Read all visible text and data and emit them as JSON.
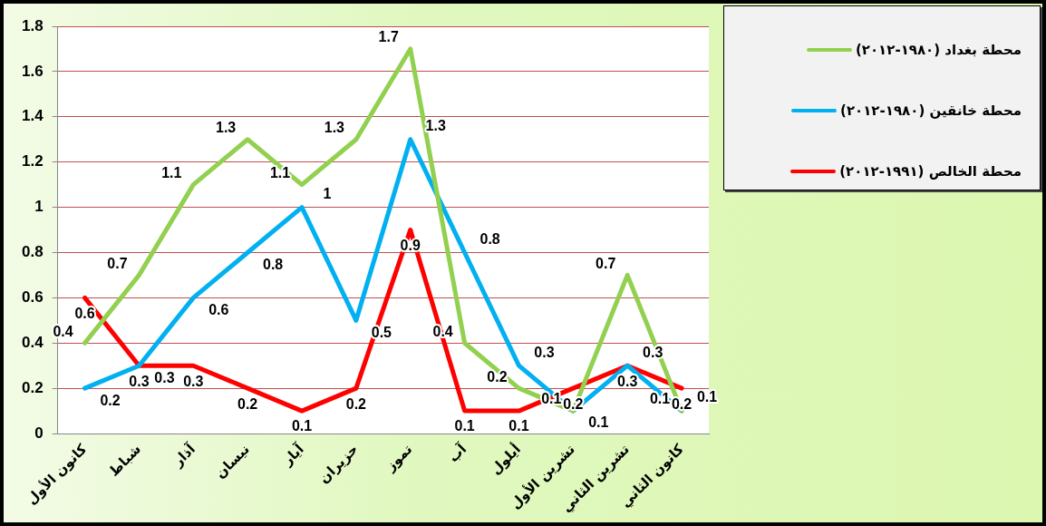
{
  "chart_data": {
    "type": "line",
    "categories": [
      "كانون الأول",
      "شباط",
      "آذار",
      "نيسان",
      "آيار",
      "حزيران",
      "تموز",
      "آب",
      "أيلول",
      "تشرين الأول",
      "تشرين الثاني",
      "كانون الثاني"
    ],
    "series": [
      {
        "name": "محطة بغداد (١٩٨٠-٢٠١٢)",
        "color": "#92d050",
        "values": [
          0.4,
          0.7,
          1.1,
          1.3,
          1.1,
          1.3,
          1.7,
          0.4,
          0.2,
          0.1,
          0.7,
          0.1
        ]
      },
      {
        "name": "محطة خانقين (١٩٨٠-٢٠١٢)",
        "color": "#00b0f0",
        "values": [
          0.2,
          0.3,
          0.6,
          0.8,
          1,
          0.5,
          1.3,
          0.8,
          0.3,
          0.1,
          0.3,
          0.1
        ]
      },
      {
        "name": "محطة الخالص (١٩٩١-٢٠١٢)",
        "color": "#ff0000",
        "values": [
          0.6,
          0.3,
          0.3,
          0.2,
          0.1,
          0.2,
          0.9,
          0.1,
          0.1,
          0.2,
          0.3,
          0.2
        ]
      }
    ],
    "ylim": [
      0,
      1.8
    ],
    "yticks": [
      0,
      0.2,
      0.4,
      0.6,
      0.8,
      1,
      1.2,
      1.4,
      1.6,
      1.8
    ],
    "grid": "y",
    "legend": "top right",
    "marker": "none",
    "line_style": "solid",
    "data_labels": true
  }
}
